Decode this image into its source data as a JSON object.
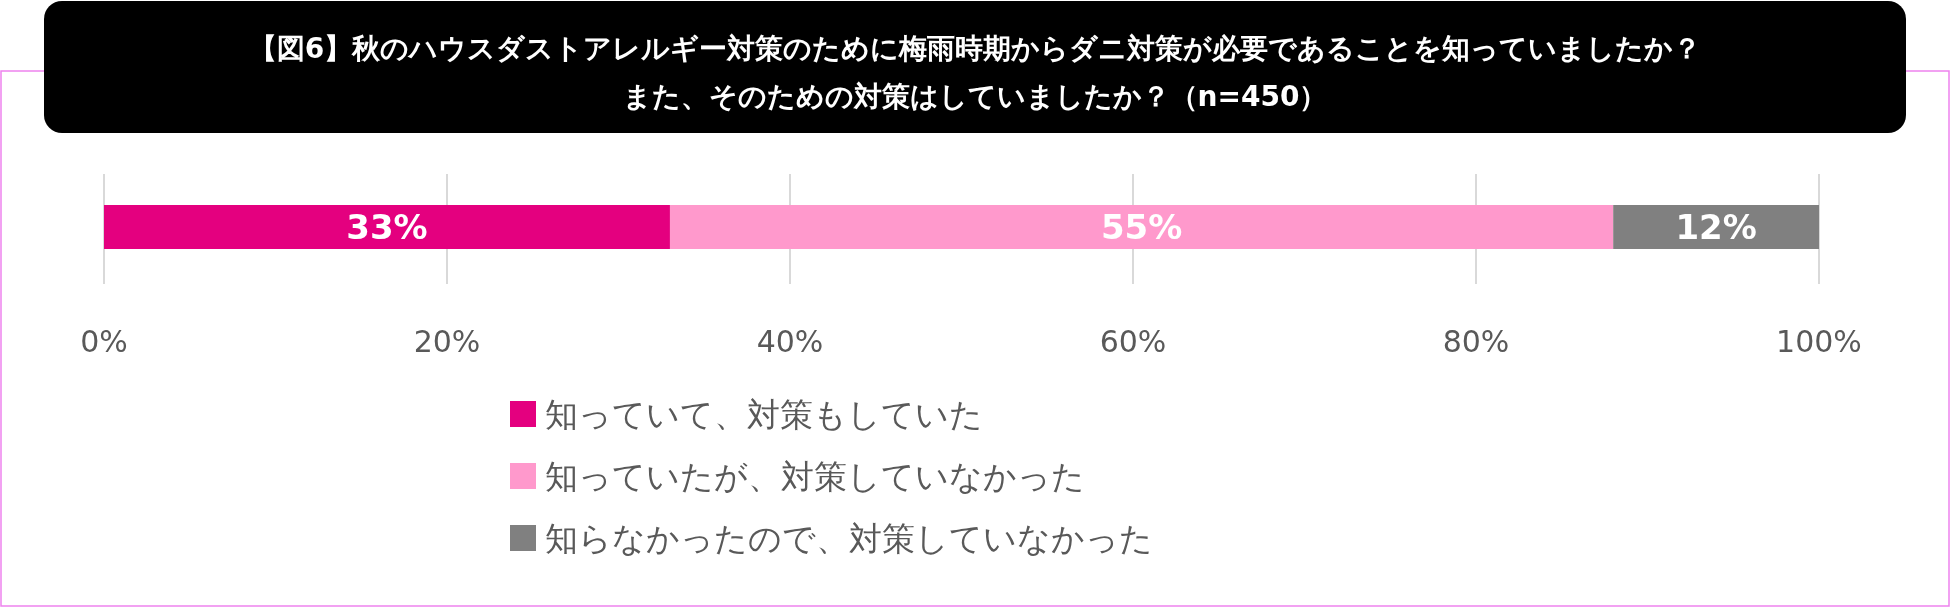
{
  "chart_data": {
    "type": "bar",
    "orientation": "horizontal",
    "stacked": true,
    "title": "【図6】秋のハウスダストアレルギー対策のために梅雨時期からダニ対策が必要であることを知っていましたか？",
    "subtitle": "また、そのための対策はしていましたか？（n=450）",
    "categories": [
      null
    ],
    "series": [
      {
        "name": "知っていて、対策もしていた",
        "color": "#e4007f",
        "values": [
          33
        ],
        "value_labels": [
          "33%"
        ]
      },
      {
        "name": "知っていたが、対策していなかった",
        "color": "#ff99cc",
        "values": [
          55
        ],
        "value_labels": [
          "55%"
        ]
      },
      {
        "name": "知らなかったので、対策していなかった",
        "color": "#808080",
        "values": [
          12
        ],
        "value_labels": [
          "12%"
        ]
      }
    ],
    "xlim": [
      0,
      100
    ],
    "xticks": [
      {
        "value": 0,
        "label": "0%"
      },
      {
        "value": 20,
        "label": "20%"
      },
      {
        "value": 40,
        "label": "40%"
      },
      {
        "value": 60,
        "label": "60%"
      },
      {
        "value": 80,
        "label": "80%"
      },
      {
        "value": 100,
        "label": "100%"
      }
    ],
    "grid": "x",
    "legend": "bottom"
  }
}
